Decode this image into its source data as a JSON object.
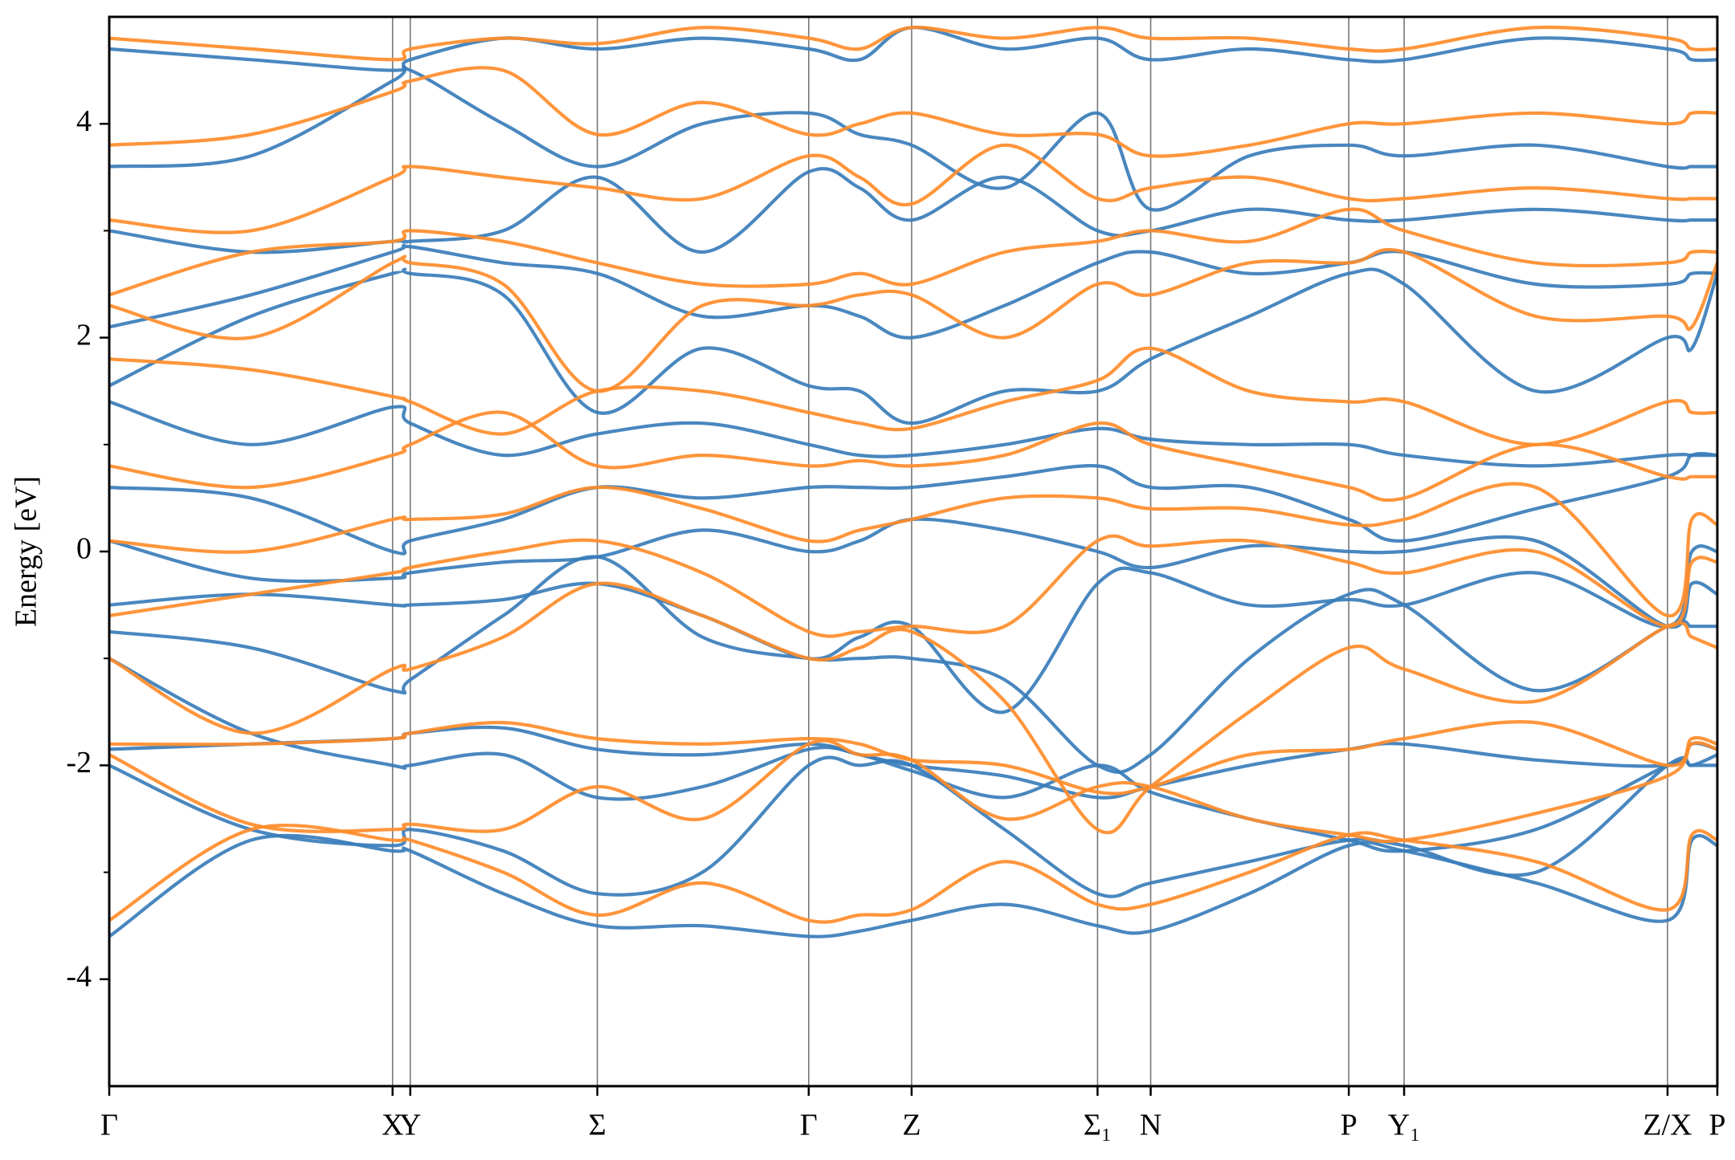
{
  "chart_data": {
    "type": "band-structure",
    "ylabel": "Energy [eV]",
    "ylim": [
      -5,
      5
    ],
    "yticks": [
      -4,
      -2,
      0,
      2,
      4
    ],
    "yminorticks": [
      -3,
      -1,
      1,
      3
    ],
    "xlim": [
      0,
      1453
    ],
    "xticks": [
      {
        "value": 0,
        "label": "Γ"
      },
      {
        "value": 256,
        "label": "X"
      },
      {
        "value": 272,
        "label": "Y"
      },
      {
        "value": 441,
        "label": "Σ"
      },
      {
        "value": 632,
        "label": "Γ"
      },
      {
        "value": 725,
        "label": "Z"
      },
      {
        "value": 893,
        "label": "Σ₁"
      },
      {
        "value": 941,
        "label": "N"
      },
      {
        "value": 1120,
        "label": "P"
      },
      {
        "value": 1170,
        "label": "Y₁"
      },
      {
        "value": 1408,
        "label": "Z/X"
      },
      {
        "value": 1453,
        "label": "P"
      }
    ],
    "x": [
      0,
      128,
      256,
      272,
      356,
      441,
      536,
      632,
      678,
      725,
      809,
      893,
      941,
      1030,
      1120,
      1170,
      1289,
      1408,
      1430,
      1453
    ],
    "series": [
      {
        "color": "#3a7dba",
        "bands": [
          [
            -3.6,
            -2.7,
            -2.8,
            -2.8,
            -3.2,
            -3.5,
            -3.5,
            -3.6,
            -3.55,
            -3.45,
            -3.3,
            -3.5,
            -3.55,
            -3.2,
            -2.75,
            -2.8,
            -3.1,
            -3.45,
            -2.7,
            -2.75
          ],
          [
            -2.0,
            -2.6,
            -2.75,
            -2.6,
            -2.8,
            -3.2,
            -3.0,
            -2.0,
            -2.0,
            -2.0,
            -2.6,
            -3.2,
            -3.1,
            -2.9,
            -2.7,
            -2.75,
            -3.0,
            -2.0,
            -2.0,
            -1.9
          ],
          [
            -1.85,
            -1.8,
            -1.75,
            -1.7,
            -1.65,
            -1.85,
            -1.9,
            -1.8,
            -1.9,
            -2.0,
            -2.1,
            -2.3,
            -2.2,
            -2.0,
            -1.85,
            -1.8,
            -1.95,
            -2.0,
            -1.8,
            -1.85
          ],
          [
            -1.0,
            -1.7,
            -2.0,
            -2.0,
            -1.9,
            -2.3,
            -2.2,
            -1.85,
            -1.9,
            -2.05,
            -2.3,
            -2.0,
            -2.25,
            -2.5,
            -2.7,
            -2.8,
            -2.6,
            -2.0,
            -2.0,
            -2.0
          ],
          [
            -0.75,
            -0.9,
            -1.3,
            -1.2,
            -0.6,
            -0.05,
            -0.8,
            -1.0,
            -1.0,
            -1.0,
            -1.2,
            -2.0,
            -1.9,
            -1.0,
            -0.4,
            -0.5,
            -1.3,
            -0.7,
            -0.7,
            -0.7
          ],
          [
            -0.5,
            -0.4,
            -0.5,
            -0.5,
            -0.45,
            -0.3,
            -0.6,
            -1.0,
            -0.8,
            -0.7,
            -1.5,
            -0.3,
            -0.2,
            -0.5,
            -0.45,
            -0.5,
            -0.2,
            -0.7,
            0.0,
            0.0
          ],
          [
            0.1,
            -0.25,
            -0.25,
            -0.2,
            -0.1,
            -0.05,
            0.2,
            0.0,
            0.1,
            0.3,
            0.2,
            0.0,
            -0.15,
            0.05,
            0.0,
            0.0,
            0.1,
            -0.7,
            -0.3,
            -0.4
          ],
          [
            0.6,
            0.5,
            0.0,
            0.1,
            0.3,
            0.6,
            0.5,
            0.6,
            0.6,
            0.6,
            0.7,
            0.8,
            0.6,
            0.6,
            0.3,
            0.1,
            0.4,
            0.7,
            0.9,
            0.9
          ],
          [
            1.4,
            1.0,
            1.35,
            1.2,
            0.9,
            1.1,
            1.2,
            1.0,
            0.9,
            0.9,
            1.0,
            1.15,
            1.05,
            1.0,
            1.0,
            0.9,
            0.8,
            0.9,
            0.9,
            0.9
          ],
          [
            1.55,
            2.2,
            2.6,
            2.6,
            2.4,
            1.3,
            1.9,
            1.55,
            1.5,
            1.2,
            1.5,
            1.5,
            1.8,
            2.2,
            2.6,
            2.5,
            1.5,
            2.0,
            1.9,
            2.6
          ],
          [
            2.1,
            2.4,
            2.8,
            2.85,
            2.7,
            2.6,
            2.2,
            2.3,
            2.2,
            2.0,
            2.3,
            2.7,
            2.8,
            2.6,
            2.7,
            2.8,
            2.5,
            2.5,
            2.6,
            2.6
          ],
          [
            3.0,
            2.8,
            2.9,
            2.9,
            3.0,
            3.5,
            2.8,
            3.55,
            3.4,
            3.1,
            3.5,
            3.0,
            3.0,
            3.2,
            3.1,
            3.1,
            3.2,
            3.1,
            3.1,
            3.1
          ],
          [
            3.6,
            3.7,
            4.4,
            4.5,
            4.0,
            3.6,
            4.0,
            4.1,
            3.9,
            3.8,
            3.4,
            4.1,
            3.2,
            3.7,
            3.8,
            3.7,
            3.8,
            3.6,
            3.6,
            3.6
          ],
          [
            4.7,
            4.6,
            4.5,
            4.6,
            4.8,
            4.7,
            4.8,
            4.7,
            4.6,
            4.9,
            4.7,
            4.8,
            4.6,
            4.7,
            4.6,
            4.6,
            4.8,
            4.7,
            4.6,
            4.6
          ]
        ]
      },
      {
        "color": "#ff8c2a",
        "bands": [
          [
            -3.45,
            -2.6,
            -2.7,
            -2.7,
            -3.0,
            -3.4,
            -3.1,
            -3.45,
            -3.4,
            -3.35,
            -2.9,
            -3.3,
            -3.3,
            -3.0,
            -2.65,
            -2.7,
            -2.9,
            -3.35,
            -2.65,
            -2.7
          ],
          [
            -1.9,
            -2.55,
            -2.6,
            -2.55,
            -2.6,
            -2.2,
            -2.5,
            -1.8,
            -1.9,
            -1.95,
            -2.5,
            -2.2,
            -2.2,
            -2.5,
            -2.65,
            -2.7,
            -2.45,
            -2.1,
            -1.8,
            -1.85
          ],
          [
            -1.8,
            -1.8,
            -1.75,
            -1.7,
            -1.6,
            -1.75,
            -1.8,
            -1.75,
            -1.8,
            -1.95,
            -2.0,
            -2.25,
            -2.2,
            -1.9,
            -1.85,
            -1.75,
            -1.6,
            -2.0,
            -1.75,
            -1.8
          ],
          [
            -1.0,
            -1.7,
            -1.1,
            -1.1,
            -0.8,
            -0.3,
            -0.6,
            -1.0,
            -0.9,
            -0.75,
            -1.4,
            -2.6,
            -2.2,
            -1.5,
            -0.9,
            -1.1,
            -1.4,
            -0.7,
            -0.8,
            -0.9
          ],
          [
            -0.6,
            -0.4,
            -0.2,
            -0.15,
            0.0,
            0.1,
            -0.2,
            -0.75,
            -0.75,
            -0.7,
            -0.7,
            0.1,
            0.05,
            0.1,
            -0.1,
            -0.2,
            0.0,
            -0.7,
            -0.1,
            -0.1
          ],
          [
            0.1,
            0.0,
            0.3,
            0.3,
            0.35,
            0.6,
            0.4,
            0.1,
            0.2,
            0.3,
            0.5,
            0.5,
            0.4,
            0.4,
            0.25,
            0.3,
            0.6,
            -0.6,
            0.3,
            0.25
          ],
          [
            0.8,
            0.6,
            0.9,
            1.0,
            1.3,
            0.8,
            0.9,
            0.8,
            0.85,
            0.8,
            0.9,
            1.2,
            1.0,
            0.8,
            0.6,
            0.5,
            1.0,
            0.7,
            0.7,
            0.7
          ],
          [
            1.8,
            1.7,
            1.45,
            1.4,
            1.1,
            1.5,
            1.5,
            1.3,
            1.2,
            1.15,
            1.4,
            1.6,
            1.9,
            1.5,
            1.4,
            1.4,
            1.0,
            1.4,
            1.3,
            1.3
          ],
          [
            2.3,
            2.0,
            2.7,
            2.7,
            2.5,
            1.5,
            2.3,
            2.3,
            2.4,
            2.4,
            2.0,
            2.5,
            2.4,
            2.7,
            2.7,
            2.8,
            2.2,
            2.2,
            2.1,
            2.7
          ],
          [
            2.4,
            2.8,
            2.9,
            3.0,
            2.9,
            2.7,
            2.5,
            2.5,
            2.6,
            2.5,
            2.8,
            2.9,
            3.0,
            2.9,
            3.2,
            3.0,
            2.7,
            2.7,
            2.8,
            2.8
          ],
          [
            3.1,
            3.0,
            3.5,
            3.6,
            3.5,
            3.4,
            3.3,
            3.7,
            3.5,
            3.25,
            3.8,
            3.3,
            3.4,
            3.5,
            3.3,
            3.3,
            3.4,
            3.3,
            3.3,
            3.3
          ],
          [
            3.8,
            3.9,
            4.3,
            4.4,
            4.5,
            3.9,
            4.2,
            3.9,
            4.0,
            4.1,
            3.9,
            3.9,
            3.7,
            3.8,
            4.0,
            4.0,
            4.1,
            4.0,
            4.1,
            4.1
          ],
          [
            4.8,
            4.7,
            4.6,
            4.7,
            4.8,
            4.75,
            4.9,
            4.8,
            4.7,
            4.9,
            4.8,
            4.9,
            4.8,
            4.8,
            4.7,
            4.7,
            4.9,
            4.8,
            4.7,
            4.7
          ]
        ]
      }
    ]
  }
}
